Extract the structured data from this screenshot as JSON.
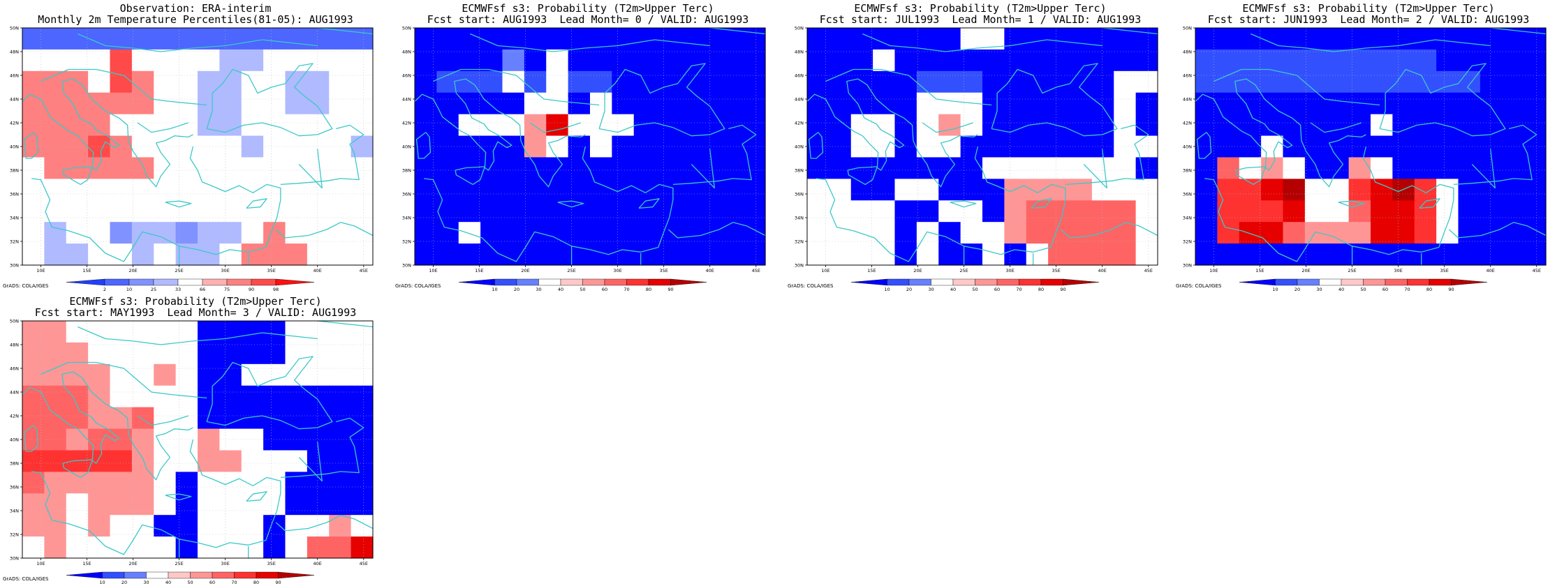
{
  "colors": {
    "coast": "#3cc8c8",
    "frame": "#000000",
    "grid": "#bbbbbb"
  },
  "palettes": {
    "obs": [
      "#2040ff",
      "#4c66ff",
      "#8092ff",
      "#b0baff",
      "#ffffff",
      "#ffb0b0",
      "#ff8080",
      "#ff4a4a",
      "#ff1010"
    ],
    "fcst": [
      "#0000ff",
      "#3350ff",
      "#6680ff",
      "#ffffff",
      "#ffc8c8",
      "#ff9696",
      "#ff6464",
      "#ff3232",
      "#e60000",
      "#b40000"
    ]
  },
  "credit": "GrADS: COLA/IGES",
  "chart_data": [
    {
      "type": "heatmap",
      "id": "obs",
      "title_line1": "Observation: ERA-interim",
      "title_line2": "Monthly 2m Temperature Percentiles(81-05): AUG1993",
      "x_ticks": [
        "10E",
        "15E",
        "20E",
        "25E",
        "30E",
        "35E",
        "40E",
        "45E"
      ],
      "y_ticks": [
        "30N",
        "32N",
        "34N",
        "36N",
        "38N",
        "40N",
        "42N",
        "44N",
        "46N",
        "48N",
        "50N"
      ],
      "xlim": [
        8,
        46
      ],
      "ylim": [
        30,
        50
      ],
      "colorbar_labels": [
        "2",
        "10",
        "25",
        "33",
        "66",
        "75",
        "90",
        "98"
      ],
      "palette": "obs",
      "rows_north_to_south": [
        [
          1,
          1,
          1,
          1,
          1,
          1,
          1,
          1,
          1,
          1,
          1,
          1,
          1,
          1,
          1,
          1
        ],
        [
          4,
          4,
          4,
          4,
          7,
          4,
          4,
          4,
          4,
          3,
          3,
          4,
          4,
          4,
          4,
          4
        ],
        [
          6,
          6,
          6,
          4,
          7,
          6,
          4,
          4,
          3,
          3,
          4,
          4,
          3,
          3,
          4,
          4
        ],
        [
          6,
          6,
          6,
          6,
          6,
          6,
          4,
          4,
          3,
          3,
          4,
          4,
          3,
          3,
          4,
          4
        ],
        [
          6,
          6,
          6,
          6,
          4,
          4,
          4,
          4,
          3,
          3,
          4,
          4,
          4,
          4,
          4,
          4
        ],
        [
          6,
          6,
          6,
          7,
          6,
          4,
          4,
          4,
          4,
          4,
          3,
          4,
          4,
          4,
          4,
          3
        ],
        [
          4,
          6,
          6,
          6,
          6,
          6,
          4,
          4,
          4,
          4,
          4,
          4,
          4,
          4,
          4,
          4
        ],
        [
          4,
          4,
          4,
          4,
          4,
          4,
          4,
          4,
          4,
          4,
          4,
          4,
          4,
          4,
          4,
          4
        ],
        [
          4,
          4,
          4,
          4,
          4,
          4,
          4,
          4,
          4,
          4,
          4,
          4,
          4,
          4,
          4,
          4
        ],
        [
          4,
          3,
          4,
          4,
          2,
          3,
          3,
          2,
          3,
          3,
          4,
          6,
          4,
          4,
          4,
          4
        ],
        [
          4,
          3,
          3,
          4,
          4,
          3,
          4,
          3,
          3,
          4,
          6,
          6,
          6,
          4,
          4,
          4
        ]
      ]
    },
    {
      "type": "heatmap",
      "id": "lead0",
      "title_line1": "ECMWFsf s3: Probability (T2m>Upper Terc)",
      "title_line2": "Fcst start: AUG1993  Lead Month= 0 / VALID: AUG1993",
      "x_ticks": [
        "10E",
        "15E",
        "20E",
        "25E",
        "30E",
        "35E",
        "40E",
        "45E"
      ],
      "y_ticks": [
        "30N",
        "32N",
        "34N",
        "36N",
        "38N",
        "40N",
        "42N",
        "44N",
        "46N",
        "48N",
        "50N"
      ],
      "xlim": [
        8,
        46
      ],
      "ylim": [
        30,
        50
      ],
      "colorbar_labels": [
        "10",
        "20",
        "30",
        "40",
        "50",
        "60",
        "70",
        "80",
        "90"
      ],
      "palette": "fcst",
      "rows_north_to_south": [
        [
          0,
          0,
          0,
          0,
          0,
          0,
          0,
          0,
          0,
          0,
          0,
          0,
          0,
          0,
          0,
          0
        ],
        [
          0,
          0,
          0,
          0,
          2,
          0,
          3,
          0,
          0,
          0,
          0,
          0,
          0,
          0,
          0,
          0
        ],
        [
          0,
          1,
          1,
          1,
          3,
          1,
          3,
          1,
          1,
          0,
          0,
          0,
          0,
          0,
          0,
          0
        ],
        [
          0,
          0,
          0,
          0,
          0,
          3,
          3,
          0,
          3,
          0,
          0,
          0,
          0,
          0,
          0,
          0
        ],
        [
          0,
          0,
          3,
          3,
          3,
          5,
          8,
          3,
          3,
          3,
          0,
          0,
          0,
          0,
          0,
          0
        ],
        [
          0,
          0,
          0,
          0,
          0,
          5,
          3,
          0,
          3,
          0,
          0,
          0,
          0,
          0,
          0,
          0
        ],
        [
          0,
          0,
          0,
          0,
          0,
          0,
          0,
          0,
          0,
          0,
          0,
          0,
          0,
          0,
          0,
          0
        ],
        [
          0,
          0,
          0,
          0,
          0,
          0,
          0,
          0,
          0,
          0,
          0,
          0,
          0,
          0,
          0,
          0
        ],
        [
          0,
          0,
          0,
          0,
          0,
          0,
          0,
          0,
          0,
          0,
          0,
          0,
          0,
          0,
          0,
          0
        ],
        [
          0,
          0,
          3,
          0,
          0,
          0,
          0,
          0,
          0,
          0,
          0,
          0,
          0,
          0,
          0,
          0
        ],
        [
          0,
          0,
          0,
          0,
          0,
          0,
          0,
          0,
          0,
          0,
          0,
          0,
          0,
          0,
          0,
          0
        ]
      ]
    },
    {
      "type": "heatmap",
      "id": "lead1",
      "title_line1": "ECMWFsf s3: Probability (T2m>Upper Terc)",
      "title_line2": "Fcst start: JUL1993  Lead Month= 1 / VALID: AUG1993",
      "x_ticks": [
        "10E",
        "15E",
        "20E",
        "25E",
        "30E",
        "35E",
        "40E",
        "45E"
      ],
      "y_ticks": [
        "30N",
        "32N",
        "34N",
        "36N",
        "38N",
        "40N",
        "42N",
        "44N",
        "46N",
        "48N",
        "50N"
      ],
      "xlim": [
        8,
        46
      ],
      "ylim": [
        30,
        50
      ],
      "colorbar_labels": [
        "10",
        "20",
        "30",
        "40",
        "50",
        "60",
        "70",
        "80",
        "90"
      ],
      "palette": "fcst",
      "rows_north_to_south": [
        [
          0,
          0,
          0,
          0,
          0,
          0,
          0,
          3,
          3,
          0,
          0,
          0,
          0,
          0,
          0,
          0
        ],
        [
          0,
          0,
          0,
          3,
          0,
          0,
          0,
          0,
          0,
          0,
          0,
          0,
          0,
          0,
          0,
          0
        ],
        [
          0,
          0,
          0,
          0,
          0,
          1,
          1,
          1,
          0,
          0,
          0,
          0,
          0,
          0,
          3,
          3
        ],
        [
          0,
          0,
          0,
          0,
          0,
          3,
          3,
          3,
          0,
          0,
          0,
          0,
          0,
          0,
          3,
          0
        ],
        [
          0,
          0,
          3,
          3,
          0,
          3,
          5,
          3,
          0,
          0,
          0,
          0,
          0,
          0,
          3,
          0
        ],
        [
          0,
          0,
          3,
          3,
          0,
          3,
          3,
          0,
          0,
          0,
          0,
          0,
          0,
          0,
          3,
          3
        ],
        [
          0,
          0,
          0,
          0,
          0,
          0,
          0,
          0,
          3,
          3,
          3,
          3,
          3,
          3,
          3,
          0
        ],
        [
          3,
          3,
          0,
          0,
          3,
          3,
          0,
          0,
          0,
          5,
          5,
          5,
          5,
          3,
          3,
          3
        ],
        [
          3,
          3,
          3,
          3,
          0,
          0,
          3,
          3,
          0,
          5,
          6,
          6,
          6,
          6,
          6,
          3
        ],
        [
          3,
          3,
          3,
          3,
          0,
          3,
          0,
          3,
          3,
          5,
          6,
          6,
          6,
          6,
          6,
          3
        ],
        [
          3,
          3,
          3,
          3,
          0,
          3,
          0,
          0,
          3,
          0,
          3,
          6,
          6,
          6,
          6,
          3
        ]
      ]
    },
    {
      "type": "heatmap",
      "id": "lead2",
      "title_line1": "ECMWFsf s3: Probability (T2m>Upper Terc)",
      "title_line2": "Fcst start: JUN1993  Lead Month= 2 / VALID: AUG1993",
      "x_ticks": [
        "10E",
        "15E",
        "20E",
        "25E",
        "30E",
        "35E",
        "40E",
        "45E"
      ],
      "y_ticks": [
        "30N",
        "32N",
        "34N",
        "36N",
        "38N",
        "40N",
        "42N",
        "44N",
        "46N",
        "48N",
        "50N"
      ],
      "xlim": [
        8,
        46
      ],
      "ylim": [
        30,
        50
      ],
      "colorbar_labels": [
        "10",
        "20",
        "30",
        "40",
        "50",
        "60",
        "70",
        "80",
        "90"
      ],
      "palette": "fcst",
      "rows_north_to_south": [
        [
          0,
          0,
          0,
          0,
          0,
          0,
          0,
          0,
          0,
          0,
          0,
          0,
          0,
          0,
          0,
          0
        ],
        [
          1,
          1,
          1,
          1,
          1,
          1,
          1,
          1,
          1,
          1,
          1,
          0,
          0,
          0,
          0,
          0
        ],
        [
          1,
          1,
          1,
          1,
          1,
          1,
          1,
          1,
          1,
          1,
          1,
          1,
          1,
          0,
          0,
          0
        ],
        [
          0,
          0,
          0,
          0,
          0,
          0,
          0,
          0,
          0,
          0,
          0,
          0,
          0,
          0,
          0,
          0
        ],
        [
          0,
          0,
          0,
          0,
          0,
          0,
          0,
          0,
          3,
          0,
          0,
          0,
          0,
          0,
          0,
          0
        ],
        [
          0,
          0,
          0,
          3,
          0,
          0,
          0,
          0,
          0,
          0,
          0,
          0,
          0,
          0,
          0,
          0
        ],
        [
          0,
          6,
          3,
          5,
          3,
          0,
          0,
          5,
          3,
          0,
          0,
          0,
          0,
          0,
          0,
          0
        ],
        [
          0,
          7,
          7,
          8,
          9,
          3,
          3,
          7,
          8,
          9,
          7,
          3,
          0,
          0,
          0,
          0
        ],
        [
          0,
          7,
          7,
          7,
          8,
          3,
          3,
          6,
          8,
          8,
          7,
          3,
          0,
          0,
          0,
          0
        ],
        [
          0,
          7,
          8,
          8,
          6,
          5,
          5,
          5,
          8,
          8,
          7,
          3,
          0,
          0,
          0,
          0
        ],
        [
          0,
          0,
          0,
          0,
          0,
          0,
          0,
          0,
          0,
          0,
          0,
          0,
          0,
          0,
          0,
          0
        ]
      ]
    },
    {
      "type": "heatmap",
      "id": "lead3",
      "title_line1": "ECMWFsf s3: Probability (T2m>Upper Terc)",
      "title_line2": "Fcst start: MAY1993  Lead Month= 3 / VALID: AUG1993",
      "x_ticks": [
        "10E",
        "15E",
        "20E",
        "25E",
        "30E",
        "35E",
        "40E",
        "45E"
      ],
      "y_ticks": [
        "30N",
        "32N",
        "34N",
        "36N",
        "38N",
        "40N",
        "42N",
        "44N",
        "46N",
        "48N",
        "50N"
      ],
      "xlim": [
        8,
        46
      ],
      "ylim": [
        30,
        50
      ],
      "colorbar_labels": [
        "10",
        "20",
        "30",
        "40",
        "50",
        "60",
        "70",
        "80",
        "90"
      ],
      "palette": "fcst",
      "rows_north_to_south": [
        [
          5,
          5,
          3,
          3,
          3,
          3,
          3,
          3,
          0,
          0,
          0,
          0,
          3,
          3,
          3,
          3
        ],
        [
          5,
          5,
          5,
          3,
          3,
          3,
          3,
          3,
          0,
          0,
          0,
          0,
          3,
          3,
          3,
          3
        ],
        [
          5,
          5,
          5,
          5,
          3,
          3,
          5,
          3,
          0,
          0,
          3,
          3,
          3,
          3,
          3,
          3
        ],
        [
          6,
          6,
          6,
          5,
          3,
          3,
          3,
          3,
          0,
          0,
          0,
          0,
          0,
          0,
          0,
          0
        ],
        [
          6,
          6,
          6,
          5,
          5,
          6,
          3,
          3,
          0,
          0,
          0,
          0,
          0,
          0,
          0,
          0
        ],
        [
          6,
          6,
          5,
          6,
          6,
          5,
          3,
          3,
          5,
          3,
          3,
          0,
          0,
          0,
          0,
          0
        ],
        [
          7,
          7,
          7,
          7,
          7,
          5,
          3,
          3,
          5,
          5,
          3,
          3,
          3,
          0,
          0,
          0
        ],
        [
          6,
          5,
          5,
          5,
          5,
          5,
          3,
          0,
          3,
          3,
          3,
          3,
          0,
          0,
          0,
          0
        ],
        [
          5,
          5,
          3,
          5,
          5,
          5,
          3,
          0,
          3,
          3,
          3,
          3,
          0,
          0,
          0,
          0
        ],
        [
          5,
          5,
          3,
          5,
          3,
          3,
          0,
          0,
          3,
          3,
          3,
          0,
          3,
          3,
          5,
          3
        ],
        [
          3,
          5,
          3,
          3,
          3,
          3,
          3,
          0,
          3,
          3,
          3,
          0,
          3,
          6,
          6,
          8
        ]
      ]
    }
  ]
}
